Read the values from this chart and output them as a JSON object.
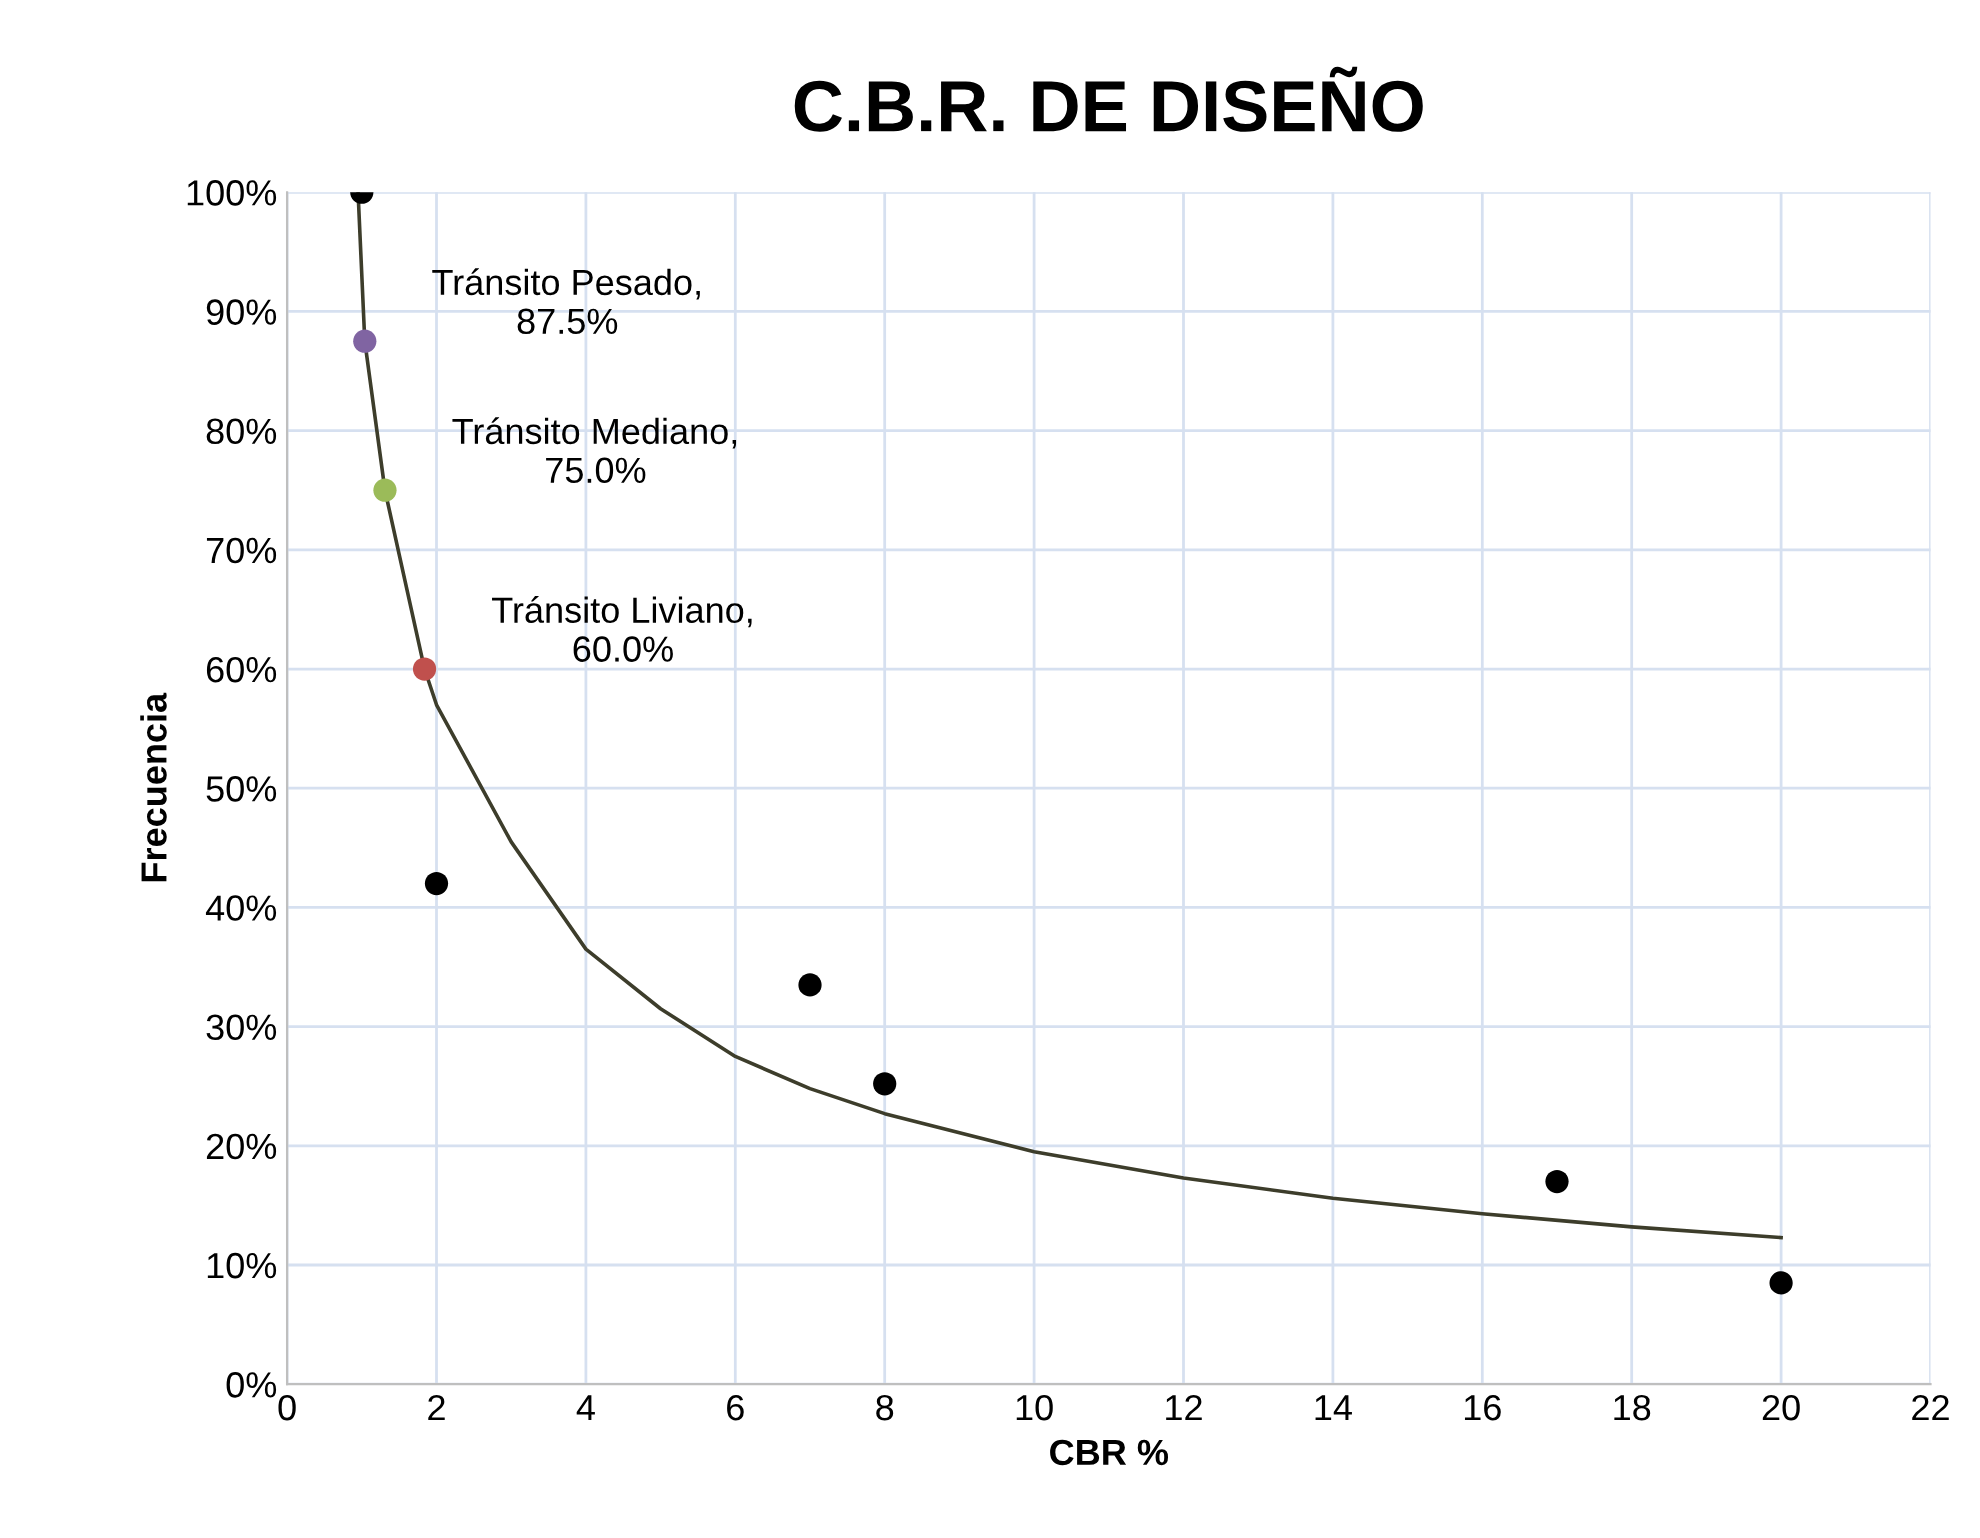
{
  "chart_data": {
    "type": "scatter",
    "title": "C.B.R. DE DISEÑO",
    "xlabel": "CBR %",
    "ylabel": "Frecuencia",
    "series": [
      {
        "type": "line",
        "color": "#3d3d2b",
        "marker": "none",
        "x": [
          0.95,
          1.04,
          1.31,
          1.84,
          2,
          3,
          4,
          5,
          6,
          7,
          8,
          10,
          12,
          14,
          16,
          18,
          20
        ],
        "values": [
          100,
          87.5,
          75,
          60,
          57,
          45.5,
          36.5,
          31.5,
          27.5,
          24.8,
          22.7,
          19.5,
          17.3,
          15.6,
          14.3,
          13.2,
          12.3
        ]
      },
      {
        "color": "#000000",
        "marker": "circle",
        "x": [
          1,
          2,
          7,
          8,
          17,
          20
        ],
        "values": [
          100,
          42,
          33.5,
          25.2,
          17,
          8.5
        ]
      },
      {
        "type": "scatter",
        "color": "#8064a2",
        "marker": "circle",
        "x": [
          1.04
        ],
        "values": [
          87.5
        ]
      },
      {
        "type": "scatter",
        "color": "#9bbb59",
        "marker": "circle",
        "x": [
          1.31
        ],
        "values": [
          75
        ]
      },
      {
        "type": "scatter",
        "color": "#c0504d",
        "marker": "circle",
        "x": [
          1.84
        ],
        "values": [
          60
        ]
      }
    ],
    "annotations": [
      {
        "text": "Tránsito Pesado,\n87.5%",
        "x": 1.04,
        "y": 87.5
      },
      {
        "text": "Tránsito Mediano,\n75.0%",
        "x": 1.31,
        "y": 75
      },
      {
        "text": "Tránsito Liviano,\n60.0%",
        "x": 1.84,
        "y": 60
      }
    ],
    "xlim": [
      0,
      22
    ],
    "xticks": [
      0,
      2,
      4,
      6,
      8,
      10,
      12,
      14,
      16,
      18,
      20,
      22
    ],
    "ylim": [
      0,
      100
    ],
    "yticks": [
      {
        "value": 0,
        "label": "0%"
      },
      {
        "value": 10,
        "label": "10%"
      },
      {
        "value": 20,
        "label": "20%"
      },
      {
        "value": 30,
        "label": "30%"
      },
      {
        "value": 40,
        "label": "40%"
      },
      {
        "value": 50,
        "label": "50%"
      },
      {
        "value": 60,
        "label": "60%"
      },
      {
        "value": 70,
        "label": "70%"
      },
      {
        "value": 80,
        "label": "80%"
      },
      {
        "value": 90,
        "label": "90%"
      },
      {
        "value": 100,
        "label": "100%"
      }
    ],
    "grid": true,
    "legend": false
  }
}
